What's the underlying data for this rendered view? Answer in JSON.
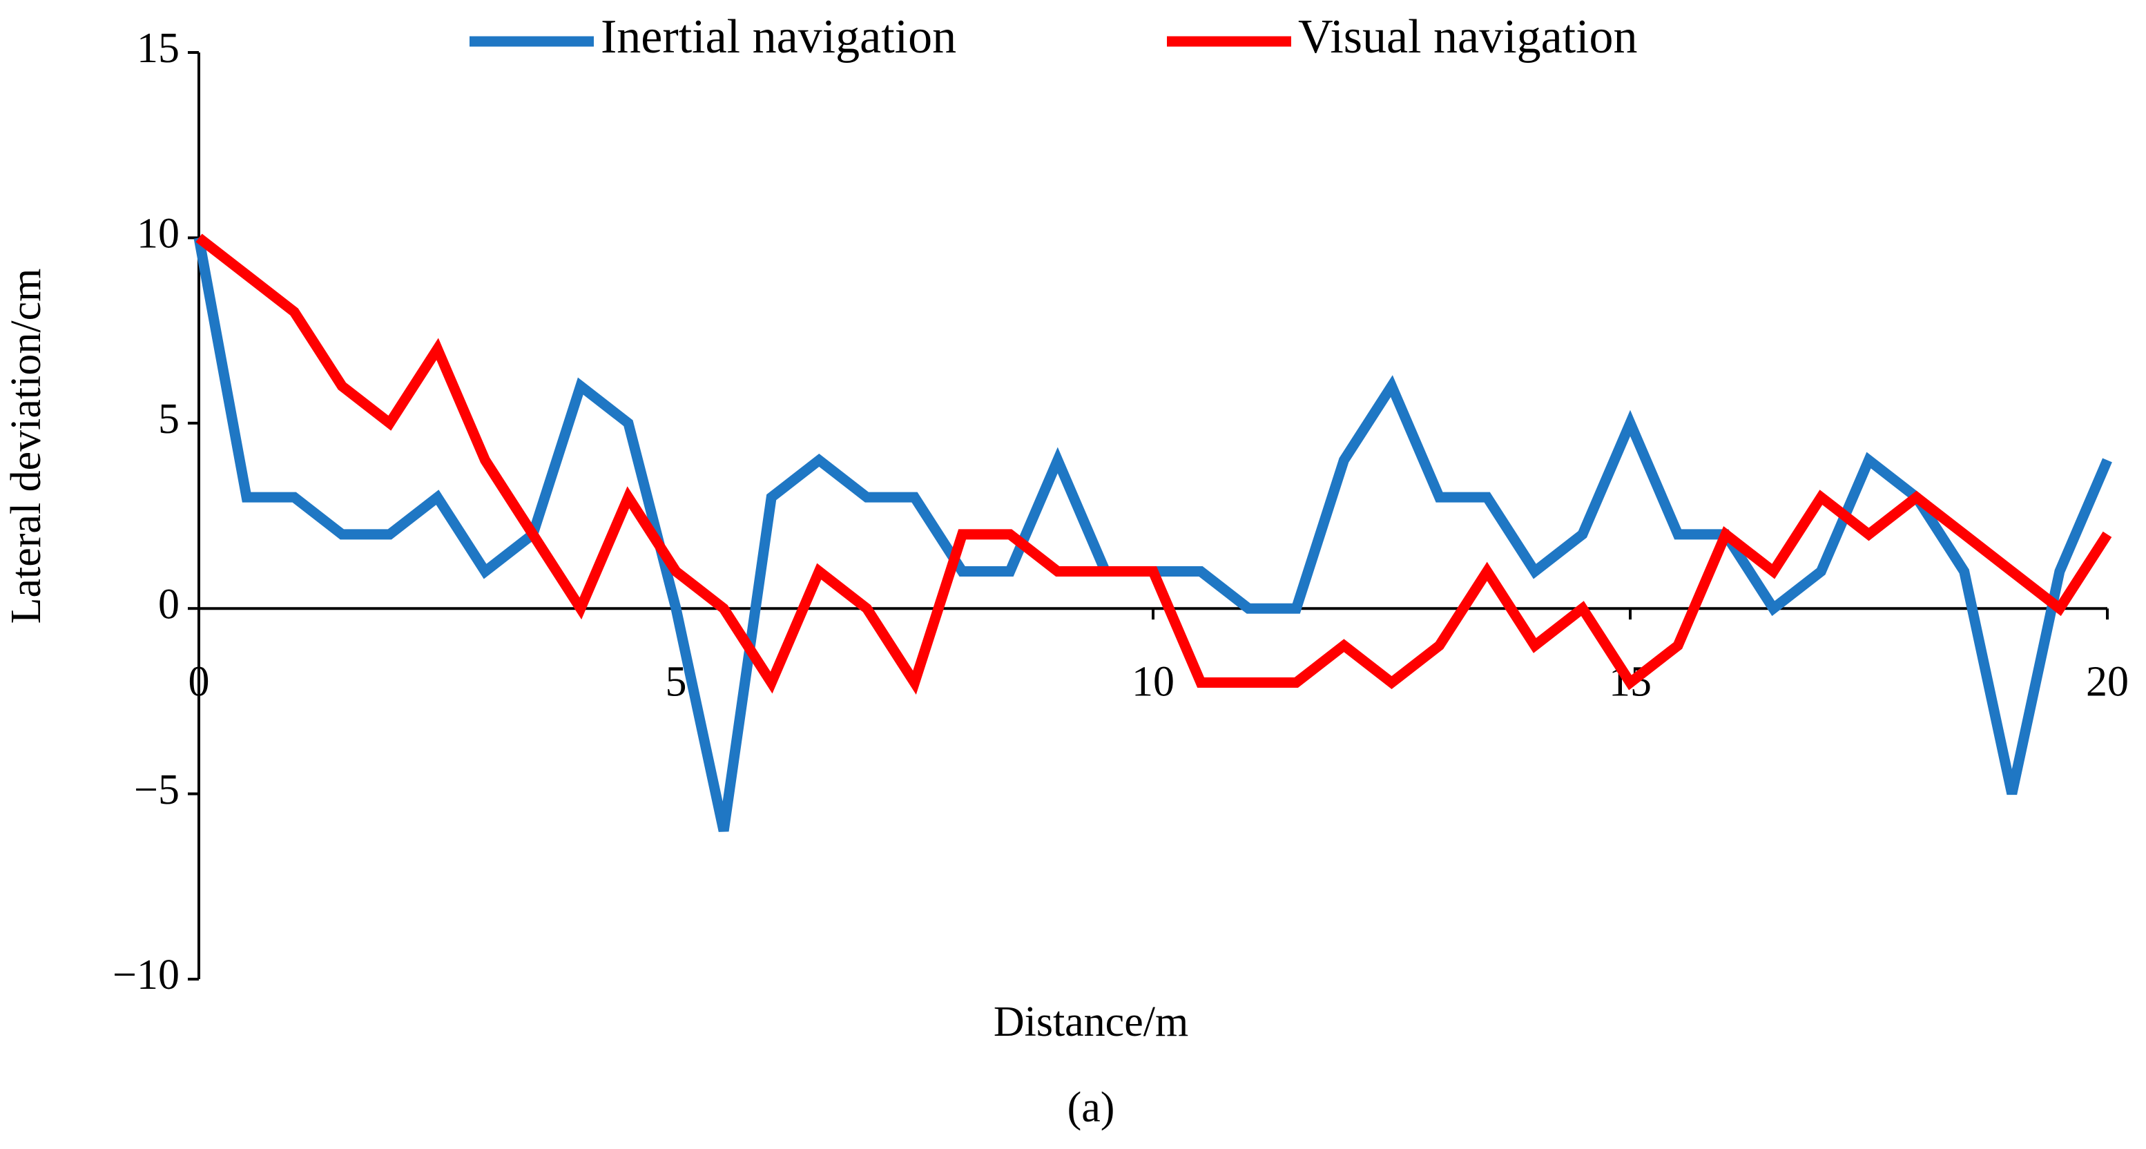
{
  "chart_data": {
    "type": "line",
    "x_label": "Distance/m",
    "y_label": "Lateral deviation/cm",
    "caption": "(a)",
    "legend": "top",
    "x": [
      0,
      0.5,
      1,
      1.5,
      2,
      2.5,
      3,
      3.5,
      4,
      4.5,
      5,
      5.5,
      6,
      6.5,
      7,
      7.5,
      8,
      8.5,
      9,
      9.5,
      10,
      10.5,
      11,
      11.5,
      12,
      12.5,
      13,
      13.5,
      14,
      14.5,
      15,
      15.5,
      16,
      16.5,
      17,
      17.5,
      18,
      18.5,
      19,
      19.5,
      20
    ],
    "series": [
      {
        "name": "Inertial navigation",
        "color": "#1f77c4",
        "values": [
          10,
          3,
          3,
          2,
          2,
          3,
          1,
          2,
          6,
          5,
          0,
          -6,
          3,
          4,
          3,
          3,
          1,
          1,
          4,
          1,
          1,
          1,
          0,
          0,
          4,
          6,
          3,
          3,
          1,
          2,
          5,
          2,
          2,
          0,
          1,
          4,
          3,
          1,
          -5,
          1,
          4
        ]
      },
      {
        "name": "Visual navigation",
        "color": "#ff0000",
        "values": [
          10,
          9,
          8,
          6,
          5,
          7,
          4,
          2,
          0,
          3,
          1,
          0,
          -2,
          1,
          0,
          -2,
          2,
          2,
          1,
          1,
          1,
          -2,
          -2,
          -2,
          -1,
          -2,
          -1,
          1,
          -1,
          0,
          -2,
          -1,
          2,
          1,
          3,
          2,
          3,
          2,
          1,
          0,
          2
        ]
      }
    ],
    "xlim": [
      0,
      20
    ],
    "xticks": [
      0,
      5,
      10,
      15,
      20
    ],
    "ylim": [
      -10,
      15
    ],
    "yticks": [
      {
        "value": -10,
        "label": "−10"
      },
      {
        "value": -5,
        "label": "−5"
      },
      0,
      5,
      10,
      15
    ]
  }
}
